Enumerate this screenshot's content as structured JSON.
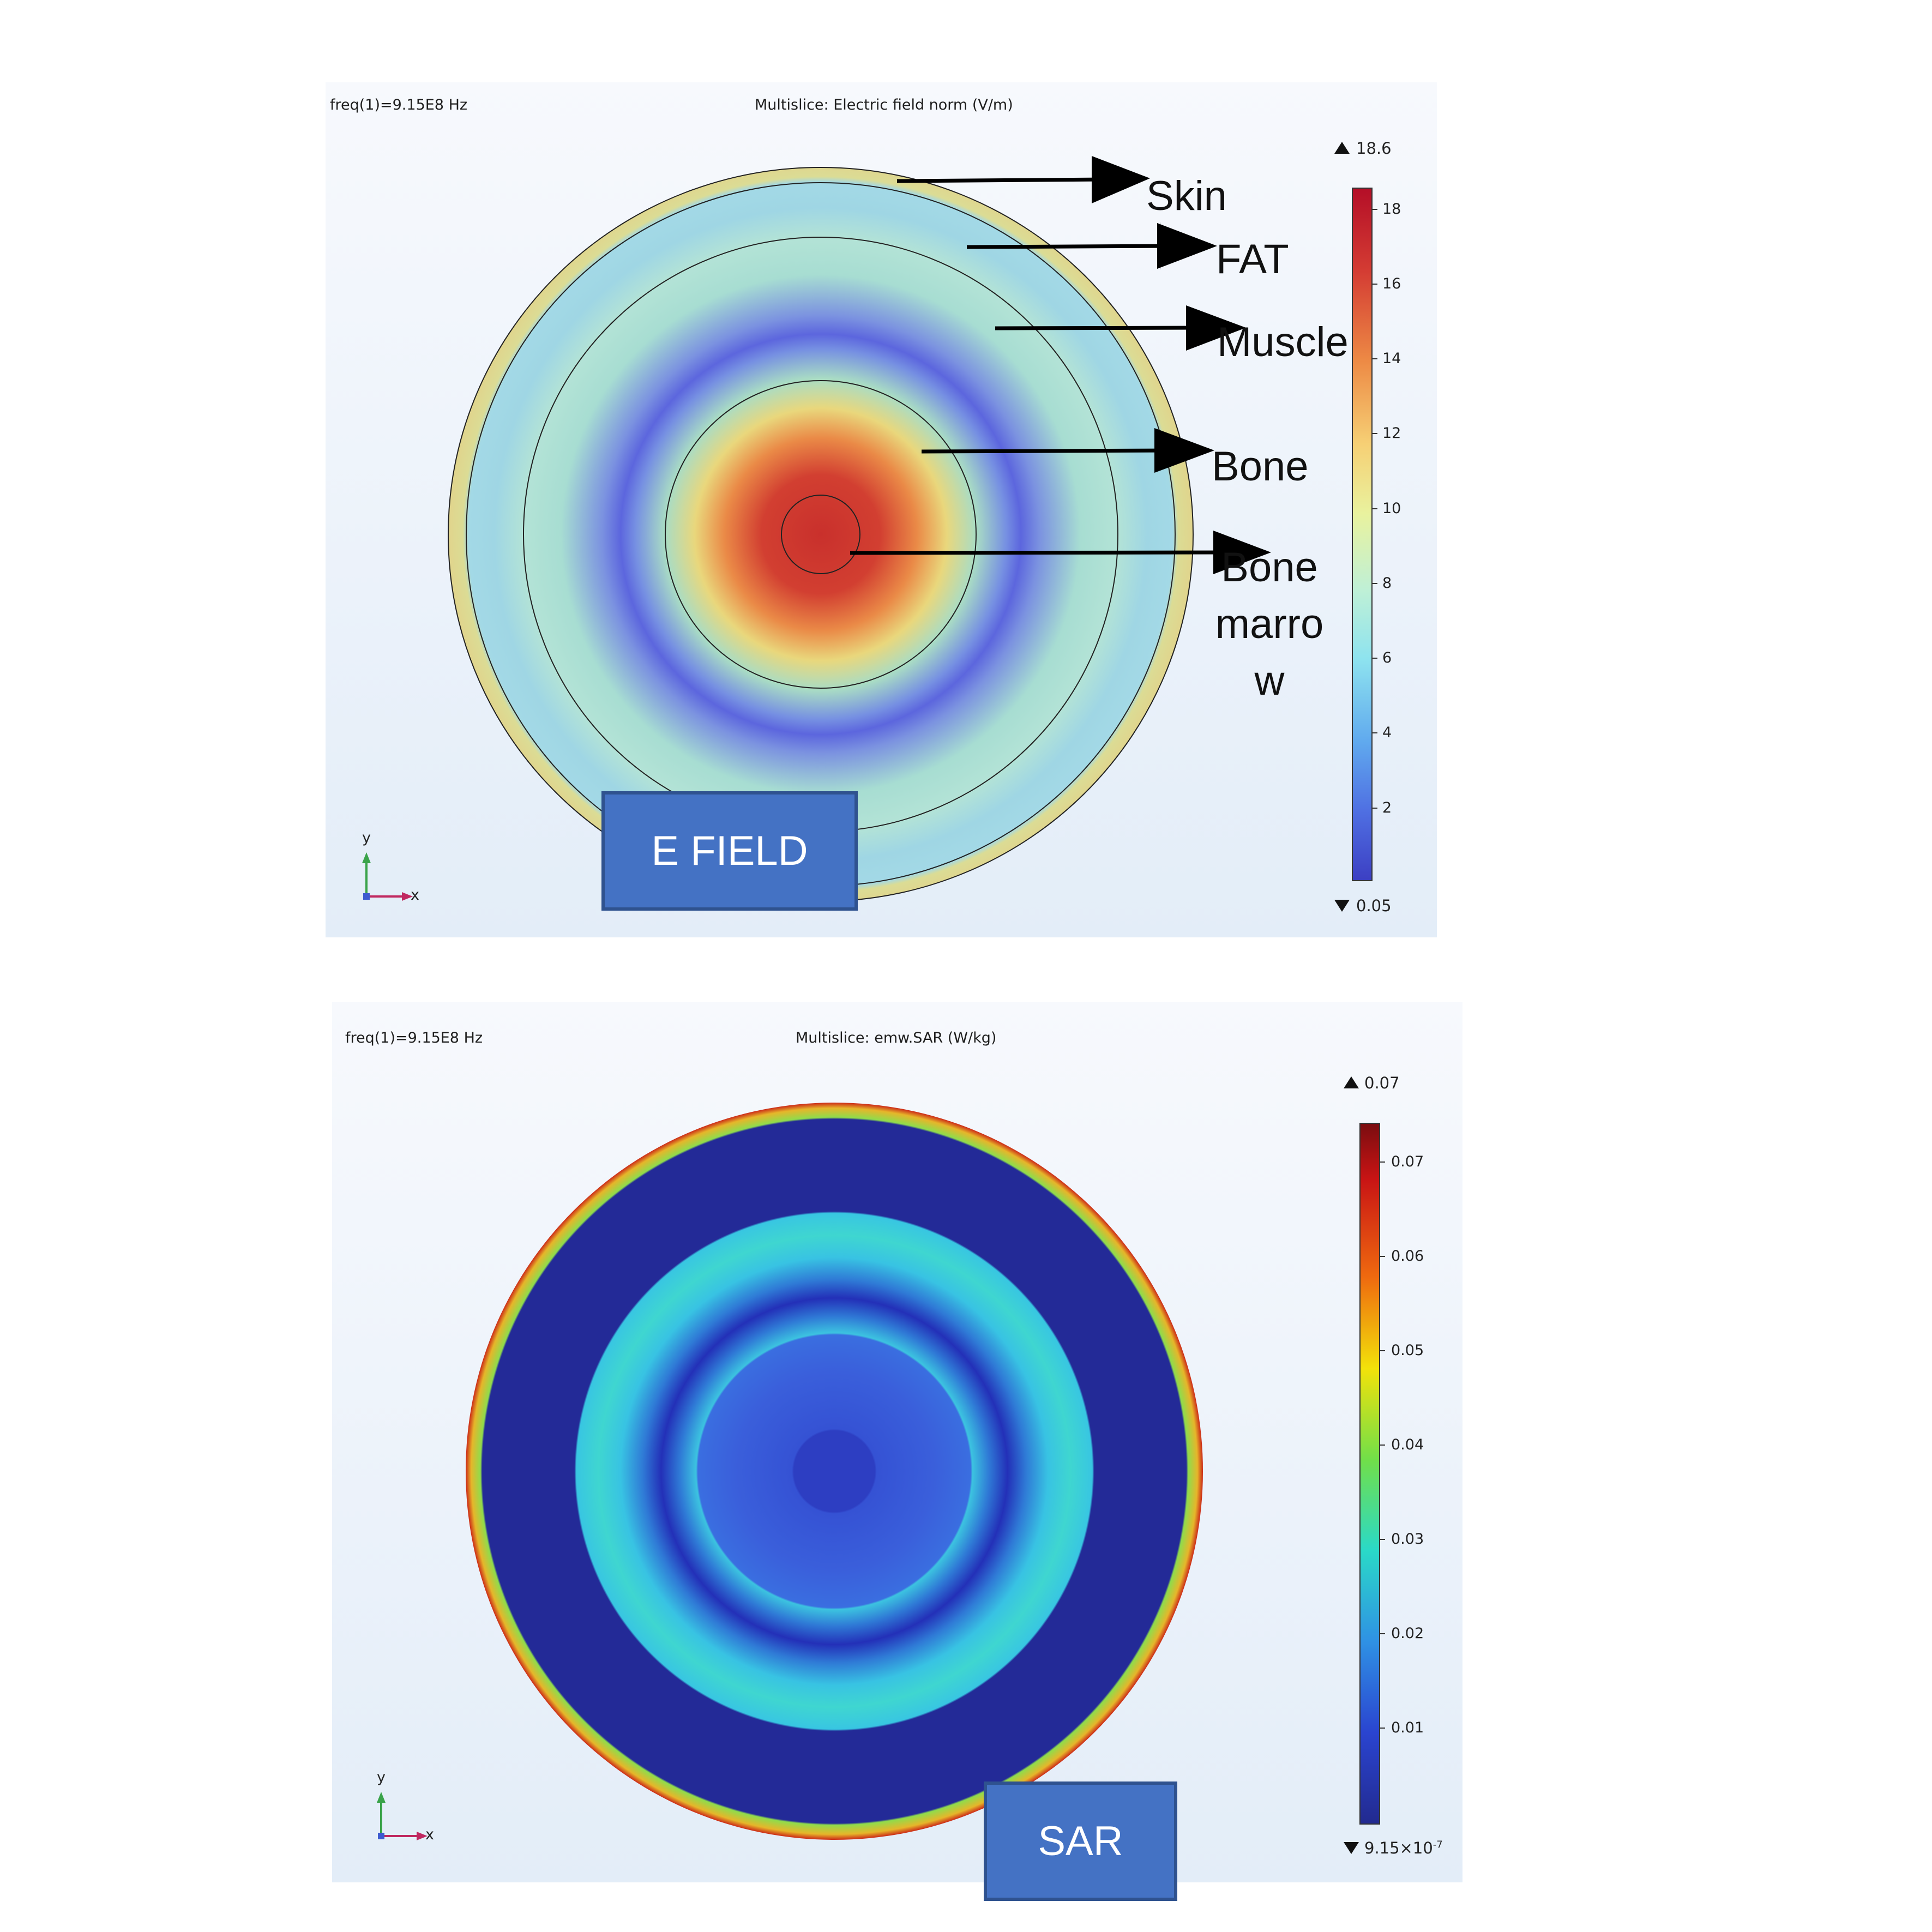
{
  "top_panel": {
    "freq": "freq(1)=9.15E8 Hz",
    "title": "Multislice: Electric field norm (V/m)",
    "label": "E FIELD",
    "colorbar": {
      "max": "18.6",
      "min": "0.05",
      "ticks": [
        "18",
        "16",
        "14",
        "12",
        "10",
        "8",
        "6",
        "4",
        "2"
      ]
    },
    "tissues": {
      "skin": "Skin",
      "fat": "FAT",
      "muscle": "Muscle",
      "bone": "Bone",
      "marrow": "Bone marro w"
    },
    "axes": {
      "y": "y",
      "x": "x"
    }
  },
  "bottom_panel": {
    "freq": "freq(1)=9.15E8 Hz",
    "title": "Multislice: emw.SAR (W/kg)",
    "label": "SAR",
    "colorbar": {
      "max": "0.07",
      "min_base": "9.15×10",
      "min_exp": "-7",
      "ticks": [
        "0.07",
        "0.06",
        "0.05",
        "0.04",
        "0.03",
        "0.02",
        "0.01"
      ]
    },
    "axes": {
      "y": "y",
      "x": "x"
    }
  },
  "colors": {
    "label_box": "#4472c4",
    "label_border": "#2f528f"
  }
}
